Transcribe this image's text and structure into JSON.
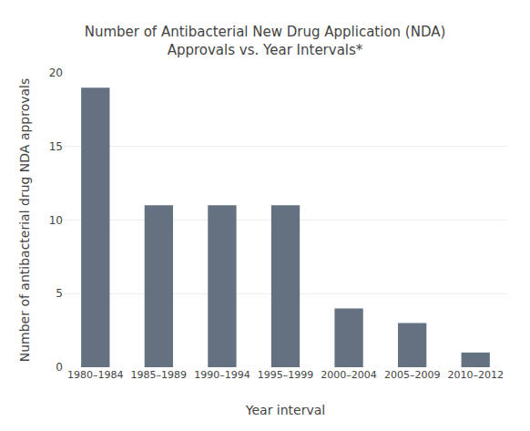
{
  "chart_data": {
    "type": "bar",
    "title": "Number of Antibacterial New Drug Application (NDA)\nApprovals vs. Year Intervals*",
    "xlabel": "Year interval",
    "ylabel": "Number of antibacterial drug NDA approvals",
    "categories": [
      "1980–1984",
      "1985–1989",
      "1990–1994",
      "1995–1999",
      "2000–2004",
      "2005–2009",
      "2010–2012"
    ],
    "values": [
      19,
      11,
      11,
      11,
      4,
      3,
      1
    ],
    "color": "#637181",
    "ylim": [
      0,
      20
    ],
    "yticks": [
      0,
      5,
      10,
      15,
      20
    ],
    "grid": true
  }
}
